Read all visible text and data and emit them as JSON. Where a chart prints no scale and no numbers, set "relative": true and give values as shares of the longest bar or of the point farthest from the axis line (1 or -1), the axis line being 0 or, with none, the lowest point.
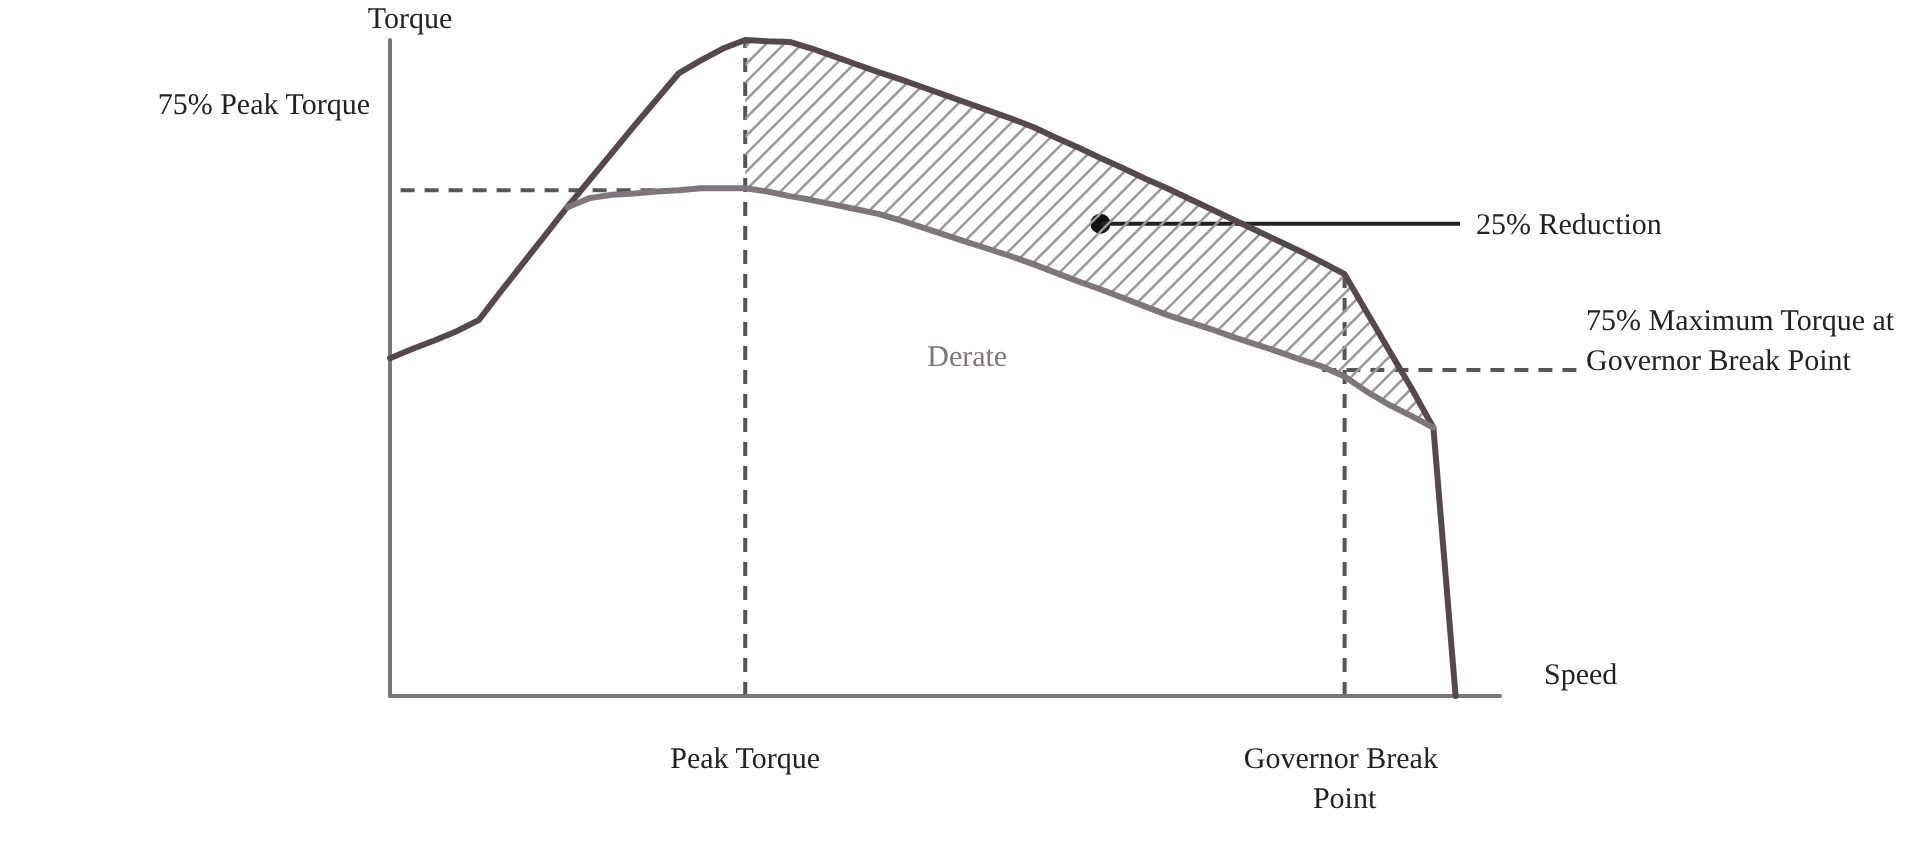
{
  "chart_data": {
    "type": "line",
    "relative": true,
    "xlabel": "Speed",
    "ylabel": "Torque",
    "categories": [
      null,
      null,
      null,
      null,
      null,
      null,
      null,
      null,
      null,
      null,
      null,
      null,
      null,
      null,
      null,
      null,
      "Peak Torque",
      null,
      null,
      null,
      null,
      null,
      null,
      null,
      null,
      null,
      null,
      null,
      null,
      null,
      null,
      null,
      null,
      null,
      null,
      null,
      null,
      null,
      null,
      null,
      null,
      null,
      null,
      "Governor Break Point",
      null,
      null,
      null,
      null,
      null,
      null,
      null
    ],
    "tick_labels": "x",
    "grid": false,
    "legend": false,
    "marker": "none",
    "line_style": "solid",
    "series": [
      {
        "color": "#55494f",
        "lower": [
          null,
          null,
          null,
          null,
          null,
          null,
          null,
          null,
          null,
          null,
          null,
          null,
          null,
          null,
          null,
          null,
          0.774,
          0.769,
          0.762,
          0.756,
          0.749,
          0.742,
          0.735,
          0.725,
          0.714,
          0.703,
          0.692,
          0.681,
          0.67,
          0.658,
          0.645,
          0.632,
          0.62,
          0.607,
          0.594,
          0.581,
          0.57,
          0.559,
          0.547,
          0.536,
          0.525,
          0.513,
          0.502,
          0.487,
          0.464,
          0.444,
          0.427,
          0.409,
          null,
          null,
          null
        ],
        "upper": [
          null,
          null,
          null,
          null,
          null,
          null,
          null,
          null,
          null,
          null,
          null,
          null,
          null,
          null,
          null,
          null,
          1,
          0.998,
          0.997,
          0.987,
          0.975,
          0.963,
          0.951,
          0.94,
          0.928,
          0.916,
          0.904,
          0.892,
          0.88,
          0.867,
          0.851,
          0.836,
          0.82,
          0.805,
          0.789,
          0.774,
          0.758,
          0.742,
          0.726,
          0.71,
          0.694,
          0.678,
          0.661,
          0.643,
          0.585,
          0.527,
          0.47,
          0.409,
          null,
          null,
          null
        ],
        "values": [
          0.515,
          0.529,
          0.542,
          0.556,
          0.573,
          0.617,
          0.66,
          0.703,
          0.746,
          0.787,
          0.828,
          0.869,
          0.909,
          0.949,
          0.969,
          0.987,
          1,
          0.998,
          0.997,
          0.987,
          0.975,
          0.963,
          0.951,
          0.94,
          0.928,
          0.916,
          0.904,
          0.892,
          0.88,
          0.867,
          0.851,
          0.836,
          0.82,
          0.805,
          0.789,
          0.774,
          0.758,
          0.742,
          0.726,
          0.71,
          0.694,
          0.678,
          0.661,
          0.643,
          0.585,
          0.527,
          0.47,
          0.409,
          0,
          null,
          null
        ]
      },
      {
        "name": "Derate",
        "color": "#7f767b",
        "values": [
          null,
          null,
          null,
          null,
          null,
          null,
          null,
          null,
          0.745,
          0.759,
          0.764,
          0.766,
          0.769,
          0.771,
          0.774,
          0.774,
          0.774,
          0.769,
          0.762,
          0.756,
          0.749,
          0.742,
          0.735,
          0.725,
          0.714,
          0.703,
          0.692,
          0.681,
          0.67,
          0.658,
          0.645,
          0.632,
          0.62,
          0.607,
          0.594,
          0.581,
          0.57,
          0.559,
          0.547,
          0.536,
          0.525,
          0.513,
          0.502,
          0.487,
          0.464,
          0.444,
          0.427,
          0.409,
          null,
          null,
          null
        ]
      }
    ],
    "ref_lines": [
      {
        "axis": "y",
        "value": 0.771,
        "label": "75% Peak Torque",
        "line_style": "dashed"
      },
      {
        "axis": "x",
        "value": "Peak Torque",
        "line_style": "dashed"
      },
      {
        "axis": "x",
        "value": "Governor Break Point",
        "line_style": "dashed"
      },
      {
        "axis": "y",
        "value": 0.497,
        "label": "75% Maximum Torque at Governor Break Point",
        "line_style": "dashed"
      }
    ],
    "annotations": [
      "25% Reduction"
    ]
  }
}
